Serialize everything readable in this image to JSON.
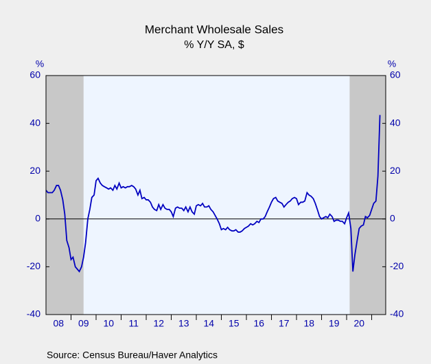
{
  "chart_data": {
    "type": "line",
    "title": "Merchant Wholesale Sales",
    "subtitle": "% Y/Y   SA, $",
    "y_unit_left": "%",
    "y_unit_right": "%",
    "source": "Source:   Census Bureau/Haver Analytics",
    "xlim": [
      2008,
      2021.56
    ],
    "ylim": [
      -40,
      60
    ],
    "yticks": [
      -40,
      -20,
      0,
      20,
      40,
      60
    ],
    "y2lim": [
      -40,
      60
    ],
    "y2ticks": [
      -40,
      -20,
      0,
      20,
      40,
      60
    ],
    "xticks": [
      {
        "value": 2008.5,
        "label": "08"
      },
      {
        "value": 2009.5,
        "label": "09"
      },
      {
        "value": 2010.5,
        "label": "10"
      },
      {
        "value": 2011.5,
        "label": "11"
      },
      {
        "value": 2012.5,
        "label": "12"
      },
      {
        "value": 2013.5,
        "label": "13"
      },
      {
        "value": 2014.5,
        "label": "14"
      },
      {
        "value": 2015.5,
        "label": "15"
      },
      {
        "value": 2016.5,
        "label": "16"
      },
      {
        "value": 2017.5,
        "label": "17"
      },
      {
        "value": 2018.5,
        "label": "18"
      },
      {
        "value": 2019.5,
        "label": "19"
      },
      {
        "value": 2020.5,
        "label": "20"
      }
    ],
    "shaded_periods": [
      [
        2008,
        2009.5
      ],
      [
        2020.12,
        2021.56
      ]
    ],
    "x": [
      2008.0,
      2008.08,
      2008.17,
      2008.25,
      2008.33,
      2008.42,
      2008.5,
      2008.58,
      2008.67,
      2008.75,
      2008.83,
      2008.92,
      2009.0,
      2009.08,
      2009.17,
      2009.25,
      2009.33,
      2009.42,
      2009.5,
      2009.58,
      2009.67,
      2009.75,
      2009.83,
      2009.92,
      2010.0,
      2010.08,
      2010.17,
      2010.25,
      2010.33,
      2010.42,
      2010.5,
      2010.58,
      2010.67,
      2010.75,
      2010.83,
      2010.92,
      2011.0,
      2011.08,
      2011.17,
      2011.25,
      2011.33,
      2011.42,
      2011.5,
      2011.58,
      2011.67,
      2011.75,
      2011.83,
      2011.92,
      2012.0,
      2012.08,
      2012.17,
      2012.25,
      2012.33,
      2012.42,
      2012.5,
      2012.58,
      2012.67,
      2012.75,
      2012.83,
      2012.92,
      2013.0,
      2013.08,
      2013.17,
      2013.25,
      2013.33,
      2013.42,
      2013.5,
      2013.58,
      2013.67,
      2013.75,
      2013.83,
      2013.92,
      2014.0,
      2014.08,
      2014.17,
      2014.25,
      2014.33,
      2014.42,
      2014.5,
      2014.58,
      2014.67,
      2014.75,
      2014.83,
      2014.92,
      2015.0,
      2015.08,
      2015.17,
      2015.25,
      2015.33,
      2015.42,
      2015.5,
      2015.58,
      2015.67,
      2015.75,
      2015.83,
      2015.92,
      2016.0,
      2016.08,
      2016.17,
      2016.25,
      2016.33,
      2016.42,
      2016.5,
      2016.58,
      2016.67,
      2016.75,
      2016.83,
      2016.92,
      2017.0,
      2017.08,
      2017.17,
      2017.25,
      2017.33,
      2017.42,
      2017.5,
      2017.58,
      2017.67,
      2017.75,
      2017.83,
      2017.92,
      2018.0,
      2018.08,
      2018.17,
      2018.25,
      2018.33,
      2018.42,
      2018.5,
      2018.58,
      2018.67,
      2018.75,
      2018.83,
      2018.92,
      2019.0,
      2019.08,
      2019.17,
      2019.25,
      2019.33,
      2019.42,
      2019.5,
      2019.58,
      2019.67,
      2019.75,
      2019.83,
      2019.92,
      2020.0,
      2020.08,
      2020.17,
      2020.25,
      2020.33,
      2020.42,
      2020.5,
      2020.58,
      2020.67,
      2020.75,
      2020.83,
      2020.92,
      2021.0,
      2021.08,
      2021.17,
      2021.25,
      2021.33
    ],
    "series": [
      {
        "color": "#0000c0",
        "values": [
          12,
          11,
          11,
          11,
          12,
          14,
          14,
          12,
          8,
          2,
          -9,
          -12,
          -17,
          -16,
          -20,
          -21,
          -22,
          -20,
          -16,
          -10,
          0,
          4,
          9,
          10,
          16,
          17,
          15,
          14,
          13.5,
          13,
          12.5,
          13,
          12,
          14,
          12.5,
          15,
          13,
          13.5,
          13,
          13.5,
          13.5,
          14,
          13.5,
          12.5,
          10,
          12,
          8.5,
          9,
          8,
          8,
          7,
          5,
          4,
          3.5,
          6,
          4,
          6,
          4.5,
          4,
          4,
          3,
          1,
          4.5,
          5,
          4.5,
          4.5,
          3.5,
          5,
          3,
          5,
          3,
          2,
          5.5,
          6,
          5.5,
          6.5,
          5,
          5,
          5.5,
          4,
          3,
          1.5,
          0,
          -2,
          -4.5,
          -4,
          -4.5,
          -3.5,
          -4.5,
          -5,
          -5,
          -4.5,
          -5.5,
          -5.5,
          -5,
          -4,
          -3.5,
          -3,
          -2,
          -2.5,
          -2,
          -1,
          -1.5,
          0,
          0,
          1,
          3,
          5,
          7,
          8.5,
          9,
          7.5,
          7,
          6.5,
          5,
          6,
          7,
          7.5,
          8.5,
          9,
          8.5,
          6,
          7,
          7,
          7.5,
          11,
          10,
          9.5,
          8.5,
          6.5,
          4,
          1,
          0,
          0.5,
          1,
          0.5,
          2,
          1,
          -1,
          -0.5,
          -0.5,
          -1,
          -1,
          -2,
          0.5,
          2.5,
          -4,
          -22,
          -15,
          -9,
          -4,
          -3,
          -2.5,
          1,
          0.5,
          1.5,
          4,
          6.5,
          7.5,
          18,
          43.5
        ]
      }
    ]
  }
}
